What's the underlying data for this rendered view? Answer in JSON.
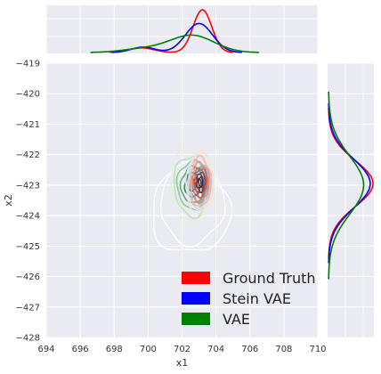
{
  "chart_data": {
    "type": "jointplot",
    "title": "",
    "xlabel": "x1",
    "ylabel": "x2",
    "xlim": [
      694,
      710
    ],
    "ylim": [
      -428,
      -419
    ],
    "x_ticks": [
      694,
      696,
      698,
      700,
      702,
      704,
      706,
      708,
      710
    ],
    "y_ticks": [
      -428,
      -427,
      -426,
      -425,
      -424,
      -423,
      -422,
      -421,
      -420,
      -419
    ],
    "x_tick_labels": [
      "694",
      "696",
      "698",
      "700",
      "702",
      "704",
      "706",
      "708",
      "710"
    ],
    "y_tick_labels": [
      "−428",
      "−427",
      "−426",
      "−425",
      "−424",
      "−423",
      "−422",
      "−421",
      "−420",
      "−419"
    ],
    "grid": true,
    "legend_position": "lower-right",
    "series": [
      {
        "name": "Ground Truth",
        "color": "#ff0000",
        "contour_palette": [
          "#fde0d5",
          "#f7b79f",
          "#ee8a6c",
          "#dd5a45",
          "#b02b2b",
          "#6d1c1c"
        ],
        "center": [
          703.1,
          -422.9
        ],
        "spread": [
          0.45,
          0.6
        ],
        "levels": 6,
        "x_marginal": [
          {
            "mean": 699.6,
            "sd": 0.75,
            "weight": 0.13
          },
          {
            "mean": 703.2,
            "sd": 0.55,
            "weight": 0.87
          }
        ],
        "y_marginal": [
          {
            "mean": -422.95,
            "sd": 0.75,
            "weight": 1.0
          }
        ]
      },
      {
        "name": "Stein VAE",
        "color": "#0000ff",
        "contour_palette": [
          "#dbe6f6",
          "#a9c3e6",
          "#6d9bd0",
          "#3f72b3",
          "#27508e",
          "#1f2f66"
        ],
        "center": [
          703.0,
          -422.95
        ],
        "spread": [
          0.5,
          0.55
        ],
        "levels": 6,
        "x_marginal": [
          {
            "mean": 699.7,
            "sd": 0.7,
            "weight": 0.14
          },
          {
            "mean": 703.0,
            "sd": 0.8,
            "weight": 0.86
          }
        ],
        "y_marginal": [
          {
            "mean": -422.95,
            "sd": 0.8,
            "weight": 1.0
          }
        ]
      },
      {
        "name": "VAE",
        "color": "#008000",
        "contour_palette": [
          "#e2f3dd",
          "#b8e2b0",
          "#84c886",
          "#4da463",
          "#257b45",
          "#0f4d2e"
        ],
        "center": [
          702.6,
          -423.0
        ],
        "spread": [
          0.8,
          0.75
        ],
        "levels": 6,
        "x_marginal": [
          {
            "mean": 699.8,
            "sd": 1.3,
            "weight": 0.18
          },
          {
            "mean": 702.6,
            "sd": 1.3,
            "weight": 0.82
          }
        ],
        "y_marginal": [
          {
            "mean": -423.0,
            "sd": 0.95,
            "weight": 1.0
          }
        ]
      }
    ],
    "gt_outer_contours": [
      {
        "center": [
          702.5,
          -423.8
        ],
        "spread": [
          2.3,
          1.45
        ],
        "color": "#ffffff"
      },
      {
        "center": [
          702.6,
          -423.7
        ],
        "spread": [
          1.9,
          1.2
        ],
        "color": "#ffffff"
      }
    ]
  }
}
